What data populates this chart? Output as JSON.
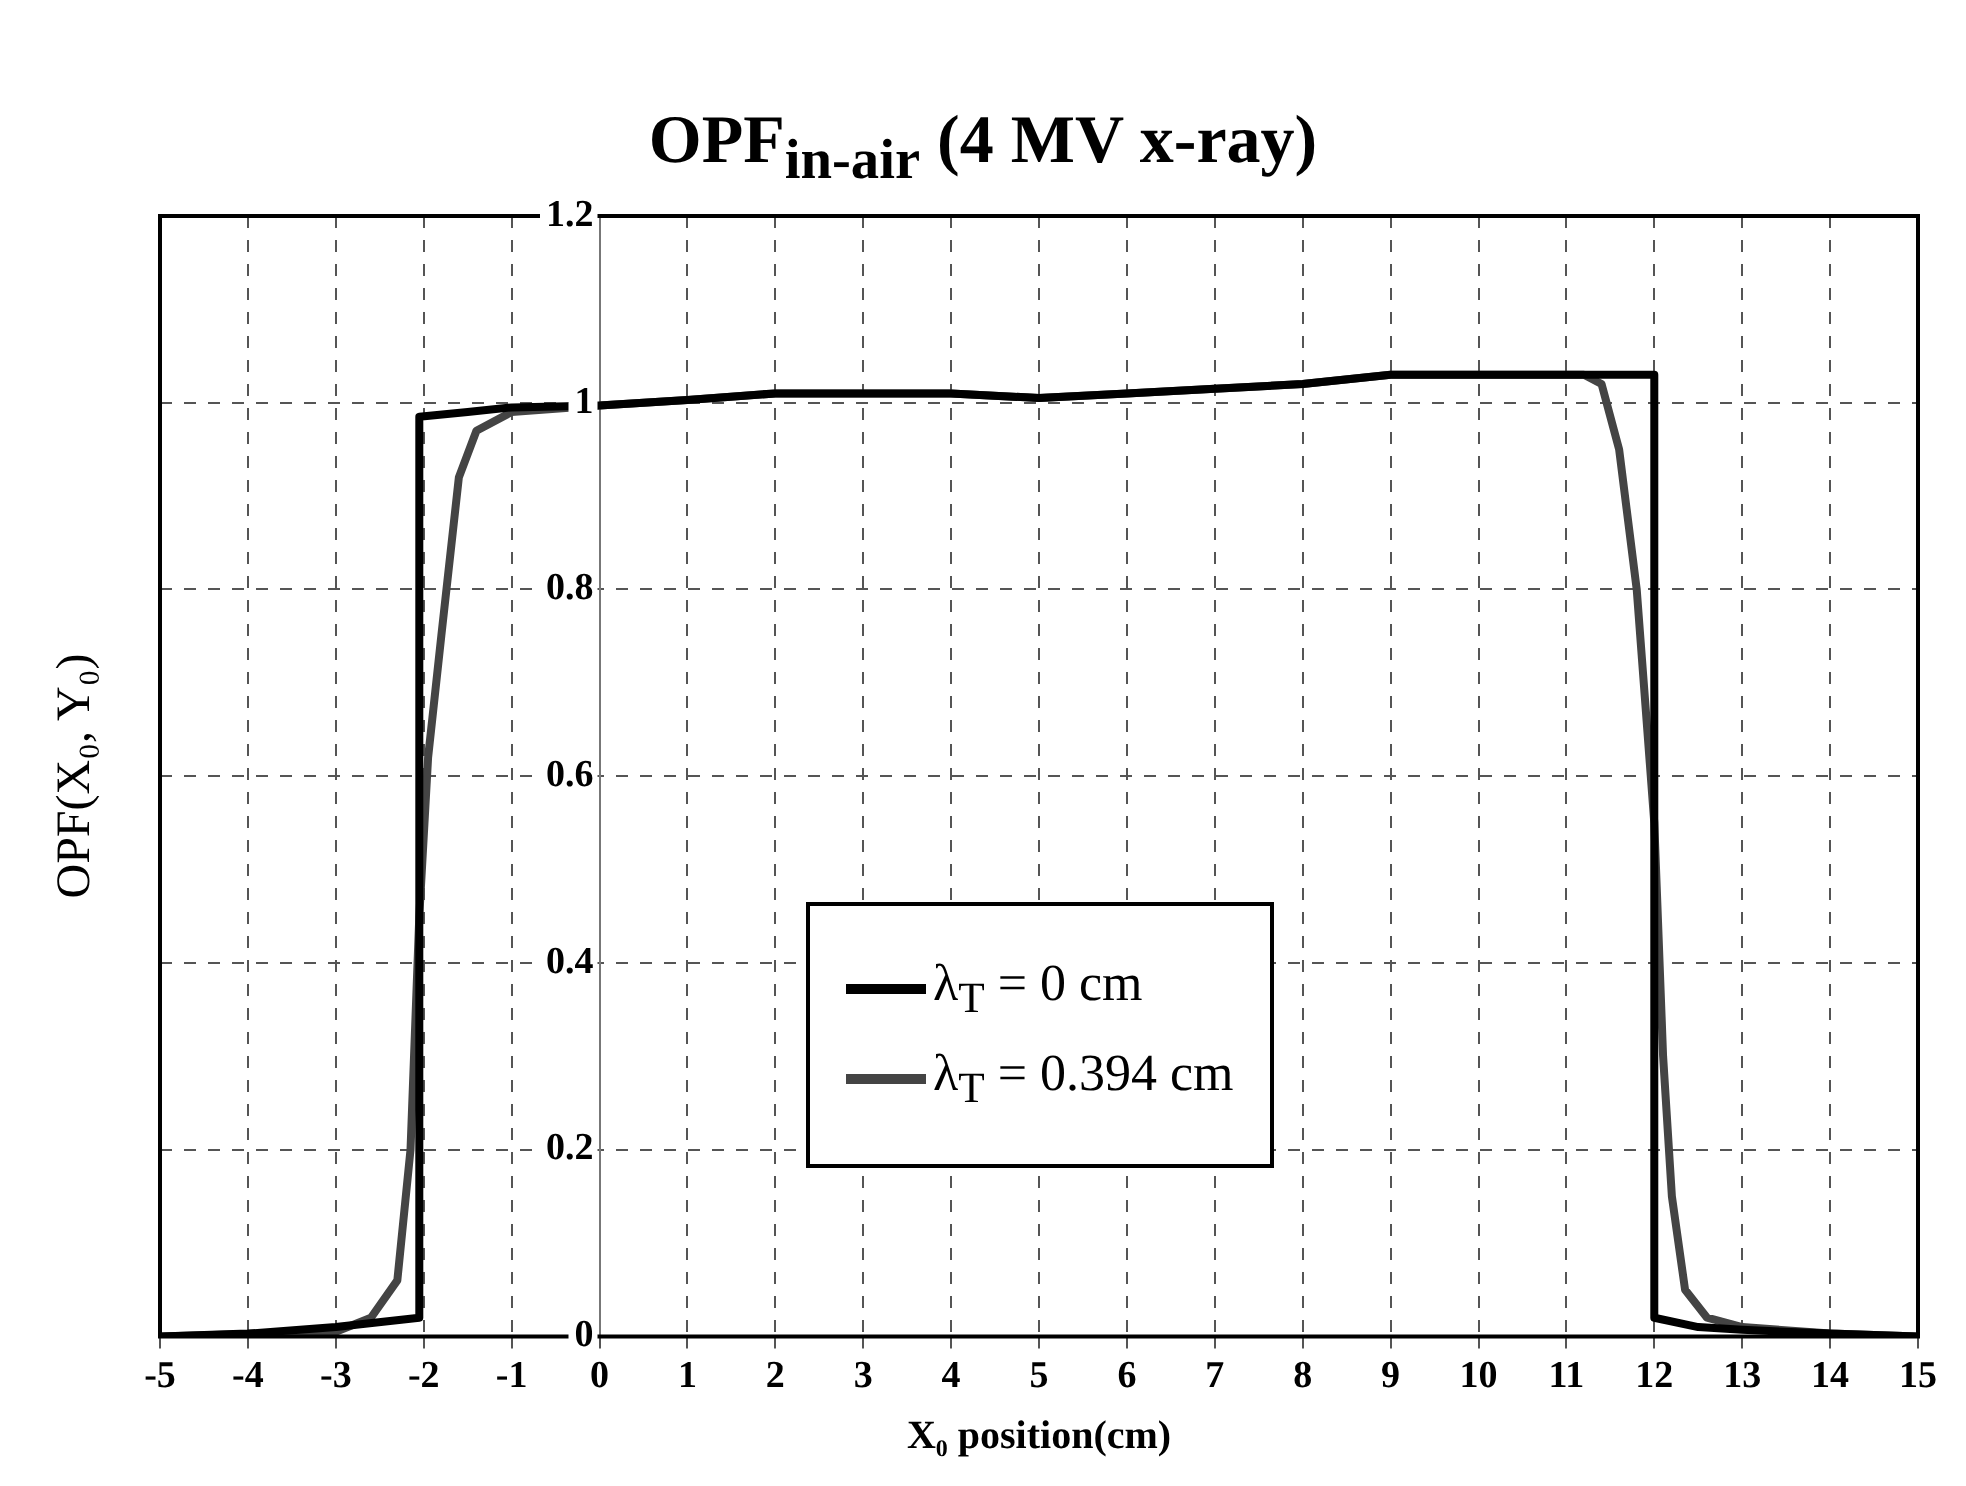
{
  "chart_data": {
    "type": "line",
    "title": "OPF$_{in-air}$ (4 MV x-ray)",
    "xlabel": "X₀ position(cm)",
    "ylabel": "OPF(X₀, Y₀)",
    "xlim": [
      -5,
      15
    ],
    "xticks": [
      -5,
      -4,
      -3,
      -2,
      -1,
      0,
      1,
      2,
      3,
      4,
      5,
      6,
      7,
      8,
      9,
      10,
      11,
      12,
      13,
      14,
      15
    ],
    "ylim": [
      0,
      1.2
    ],
    "yticks": [
      0,
      0.2,
      0.4,
      0.6,
      0.8,
      1,
      1.2
    ],
    "grid": true,
    "legend": "bottom",
    "marker": "none",
    "line_style": "solid",
    "series": [
      {
        "name": "λ$_{T}$ = 0 cm",
        "color": "#000000",
        "x": [
          -5,
          -4,
          -3,
          -2.05,
          -2.05,
          -1.5,
          -1,
          0,
          1,
          2,
          3,
          4,
          5,
          6,
          7,
          8,
          9,
          10,
          11,
          12,
          12,
          12.5,
          13,
          14,
          15
        ],
        "values": [
          0,
          0.003,
          0.01,
          0.02,
          0.985,
          0.99,
          0.995,
          0.997,
          1.003,
          1.01,
          1.01,
          1.01,
          1.005,
          1.01,
          1.015,
          1.02,
          1.03,
          1.03,
          1.03,
          1.03,
          0.02,
          0.01,
          0.007,
          0.003,
          0
        ]
      },
      {
        "name": "λ$_{T}$ = 0.394 cm",
        "color": "#444444",
        "x": [
          -5,
          -3,
          -2.6,
          -2.3,
          -2.15,
          -2.05,
          -1.95,
          -1.8,
          -1.6,
          -1.4,
          -1,
          0,
          1,
          2,
          3,
          4,
          5,
          6,
          7,
          8,
          9,
          10,
          11,
          11.2,
          11.4,
          11.6,
          11.8,
          12,
          12.1,
          12.2,
          12.35,
          12.6,
          13,
          14,
          15
        ],
        "values": [
          0,
          0.005,
          0.02,
          0.06,
          0.2,
          0.45,
          0.62,
          0.75,
          0.92,
          0.97,
          0.99,
          0.997,
          1.003,
          1.01,
          1.01,
          1.01,
          1.005,
          1.01,
          1.015,
          1.02,
          1.03,
          1.03,
          1.03,
          1.03,
          1.02,
          0.95,
          0.8,
          0.55,
          0.3,
          0.15,
          0.05,
          0.02,
          0.01,
          0.003,
          0
        ]
      }
    ]
  }
}
